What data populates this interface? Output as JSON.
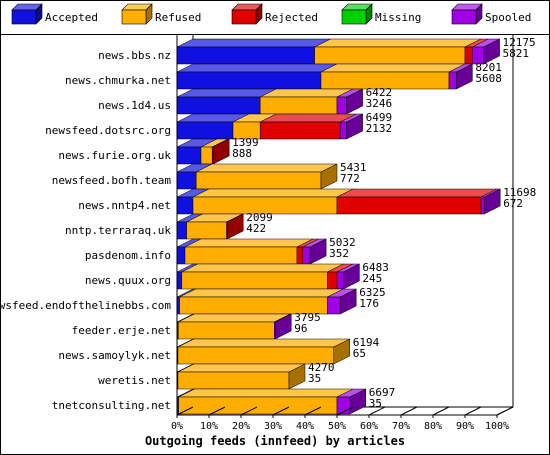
{
  "chart_data": {
    "type": "bar",
    "orientation": "horizontal",
    "stacked": true,
    "title": "Outgoing feeds (innfeed) by articles",
    "xlabel": "",
    "ylabel": "",
    "xlim": [
      0,
      100
    ],
    "x_ticks": [
      "0%",
      "10%",
      "20%",
      "30%",
      "40%",
      "50%",
      "60%",
      "70%",
      "80%",
      "90%",
      "100%"
    ],
    "legend_placement": "top",
    "series": [
      {
        "name": "Accepted",
        "color": "#1010e0"
      },
      {
        "name": "Refused",
        "color": "#ffae00"
      },
      {
        "name": "Rejected",
        "color": "#e00000"
      },
      {
        "name": "Missing",
        "color": "#00d000"
      },
      {
        "name": "Spooled",
        "color": "#a000e8"
      }
    ],
    "rows": [
      {
        "category": "news.bbs.nz",
        "accepted": "12175",
        "refused": "5821",
        "percent": [
          43.0,
          47.0,
          2.3,
          0,
          3.5
        ]
      },
      {
        "category": "news.chmurka.net",
        "accepted": "8201",
        "refused": "5608",
        "percent": [
          45.0,
          40.0,
          0,
          0,
          2.3
        ]
      },
      {
        "category": "news.1d4.us",
        "accepted": "6422",
        "refused": "3246",
        "percent": [
          26.0,
          24.0,
          0,
          0,
          3.0
        ]
      },
      {
        "category": "newsfeed.dotsrc.org",
        "accepted": "6499",
        "refused": "2132",
        "percent": [
          17.5,
          8.5,
          25.0,
          0,
          2.0
        ]
      },
      {
        "category": "news.furie.org.uk",
        "accepted": "1399",
        "refused": "888",
        "percent": [
          7.5,
          3.5,
          0.3,
          0,
          0
        ]
      },
      {
        "category": "newsfeed.bofh.team",
        "accepted": "5431",
        "refused": "772",
        "percent": [
          6.0,
          39.0,
          0,
          0,
          0
        ]
      },
      {
        "category": "news.nntp4.net",
        "accepted": "11698",
        "refused": "672",
        "percent": [
          5.0,
          45.0,
          45.0,
          0,
          1.0
        ]
      },
      {
        "category": "nntp.terraraq.uk",
        "accepted": "2099",
        "refused": "422",
        "percent": [
          3.0,
          12.5,
          0.2,
          0,
          0
        ]
      },
      {
        "category": "pasdenom.info",
        "accepted": "5032",
        "refused": "352",
        "percent": [
          2.5,
          35.0,
          1.8,
          0,
          2.3
        ]
      },
      {
        "category": "news.quux.org",
        "accepted": "6483",
        "refused": "245",
        "percent": [
          1.5,
          45.5,
          3.0,
          0,
          2.0
        ]
      },
      {
        "category": "newsfeed.endofthelinebbs.com",
        "accepted": "6325",
        "refused": "176",
        "percent": [
          0.8,
          46.2,
          0,
          0,
          4.0
        ]
      },
      {
        "category": "feeder.erje.net",
        "accepted": "3795",
        "refused": "96",
        "percent": [
          0.4,
          30.0,
          0,
          0,
          0.3
        ]
      },
      {
        "category": "news.samoylyk.net",
        "accepted": "6194",
        "refused": "65",
        "percent": [
          0.3,
          48.7,
          0,
          0,
          0
        ]
      },
      {
        "category": "weretis.net",
        "accepted": "4270",
        "refused": "35",
        "percent": [
          0.3,
          34.7,
          0,
          0,
          0
        ]
      },
      {
        "category": "tnetconsulting.net",
        "accepted": "6697",
        "refused": "35",
        "percent": [
          0.5,
          49.5,
          0,
          0,
          4.0
        ]
      }
    ]
  }
}
